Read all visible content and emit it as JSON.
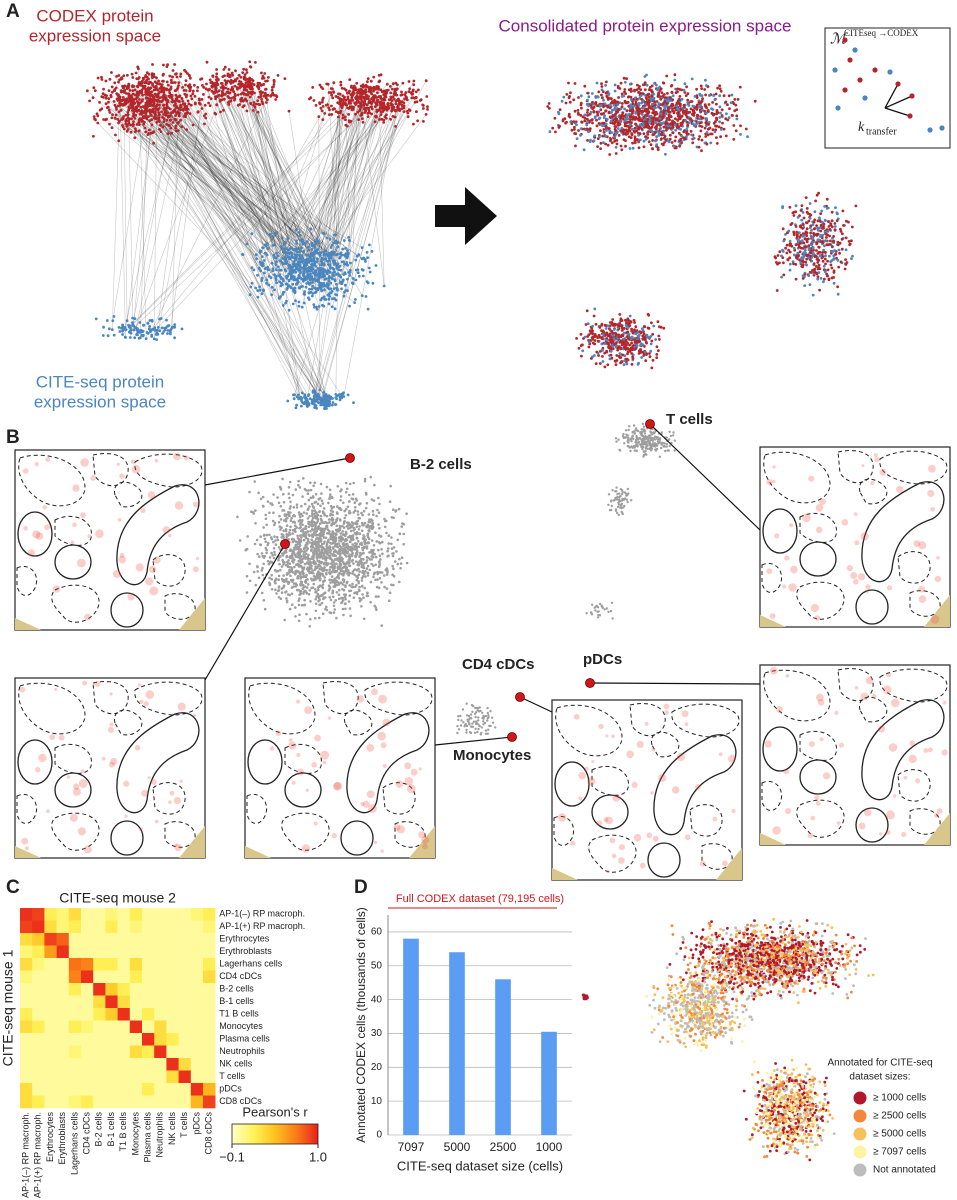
{
  "panels": {
    "A": {
      "label": "A",
      "codex_label": [
        "CODEX protein",
        "expression space"
      ],
      "cite_label": [
        "CITE-seq protein",
        "expression space"
      ],
      "consolidated_label": "Consolidated protein expression space",
      "mapping_symbol": "ℳ",
      "mapping_superscript": "CITEseq →CODEX",
      "k_symbol": "k",
      "k_subscript": "transfer"
    },
    "B": {
      "label": "B",
      "clusters": [
        "B-2 cells",
        "T cells",
        "CD4 cDCs",
        "pDCs",
        "Monocytes"
      ]
    },
    "C": {
      "label": "C"
    },
    "D": {
      "label": "D",
      "legend_title": [
        "Annotated for CITE-seq",
        "dataset sizes:"
      ],
      "legend": [
        {
          "label": "≥ 1000 cells",
          "color": "#b2182b"
        },
        {
          "label": "≥ 2500 cells",
          "color": "#f4873a"
        },
        {
          "label": "≥ 5000 cells",
          "color": "#f7c05b"
        },
        {
          "label": "≥ 7097 cells",
          "color": "#fdf3a0"
        },
        {
          "label": "Not annotated",
          "color": "#bdbdbd"
        }
      ]
    }
  },
  "chart_data": [
    {
      "type": "heatmap",
      "title": "CITE-seq mouse 2",
      "ylabel": "CITE-seq mouse 1",
      "rows": [
        "AP-1(–) RP macroph.",
        "AP-1(+) RP macroph.",
        "Erythrocytes",
        "Erythroblasts",
        "Lagerhans cells",
        "CD4 cDCs",
        "B-2 cells",
        "B-1 cells",
        "T1 B cells",
        "Monocytes",
        "Plasma cells",
        "Neutrophils",
        "NK cells",
        "T cells",
        "pDCs",
        "CD8 cDCs"
      ],
      "columns": [
        "AP-1(–) RP macroph.",
        "AP-1(+) RP macroph.",
        "Erythrocytes",
        "Erythroblasts",
        "Lagerhans cells",
        "CD4 cDCs",
        "B-2 cells",
        "B-1 cells",
        "T1 B cells",
        "Monocytes",
        "Plasma cells",
        "Neutrophils",
        "NK cells",
        "T cells",
        "pDCs",
        "CD8 cDCs"
      ],
      "values": [
        [
          0.95,
          0.9,
          0.2,
          0.1,
          0.3,
          0,
          0,
          0.1,
          0,
          0.2,
          0,
          0,
          0,
          0,
          0.1,
          0.2
        ],
        [
          0.9,
          0.95,
          0.3,
          0.1,
          0.2,
          0,
          0,
          0.2,
          0,
          0.1,
          0,
          0,
          0,
          0,
          0,
          0.1
        ],
        [
          0.3,
          0.4,
          0.9,
          0.8,
          0,
          0,
          0,
          0,
          0,
          0,
          0,
          0,
          0,
          0,
          0,
          0
        ],
        [
          0.1,
          0.2,
          0.6,
          0.95,
          0,
          0,
          0,
          0,
          0,
          0,
          0,
          0,
          0,
          0,
          0,
          0
        ],
        [
          0.3,
          0.1,
          0,
          0,
          0.75,
          0.7,
          0.2,
          0.2,
          0,
          0.3,
          0,
          0,
          0,
          0,
          0,
          0.2
        ],
        [
          0.1,
          0,
          0,
          0,
          0.7,
          0.95,
          0,
          0,
          0,
          0.2,
          0,
          0,
          0,
          0,
          0,
          0.3
        ],
        [
          0,
          0,
          0,
          0,
          0.2,
          0,
          0.95,
          0.4,
          0.2,
          0,
          0,
          0,
          0,
          0,
          0,
          0
        ],
        [
          0,
          0,
          0,
          0,
          0,
          0,
          0.3,
          0.95,
          0.3,
          0,
          0,
          0,
          0,
          0,
          0,
          0
        ],
        [
          0.2,
          0,
          0,
          0,
          0,
          0,
          0.2,
          0.4,
          0.95,
          0,
          0.2,
          0,
          0,
          0,
          0,
          0
        ],
        [
          0.3,
          0.2,
          0,
          0,
          0.2,
          0.1,
          0,
          0,
          0,
          0.95,
          0,
          0.3,
          0,
          0,
          0,
          0
        ],
        [
          0,
          0,
          0,
          0,
          0,
          0,
          0,
          0,
          0,
          0,
          0.95,
          0.3,
          0.2,
          0,
          0,
          0
        ],
        [
          0,
          0,
          0,
          0,
          0.1,
          0,
          0,
          0,
          0,
          0.3,
          0.2,
          0.95,
          0,
          0,
          0,
          0
        ],
        [
          0,
          0,
          0,
          0,
          0,
          0,
          0,
          0,
          0,
          0,
          0,
          0,
          0.95,
          0.3,
          0,
          0
        ],
        [
          0,
          0,
          0,
          0,
          0,
          0,
          0,
          0,
          0,
          0,
          0,
          0,
          0.3,
          0.95,
          0,
          0
        ],
        [
          0.3,
          0,
          0,
          0,
          0,
          0,
          0,
          0,
          0,
          0,
          0.2,
          0,
          0,
          0,
          0.95,
          0.5
        ],
        [
          0.3,
          0.2,
          0,
          0,
          0.1,
          0.2,
          0,
          0,
          0,
          0,
          0,
          0,
          0,
          0,
          0.5,
          0.9
        ]
      ],
      "colorbar_label": "Pearson's r",
      "clim": [
        -0.1,
        1.0
      ],
      "cticks": [
        {
          "value": -0.1,
          "label": "−0.1"
        },
        {
          "value": 1.0,
          "label": "1.0"
        }
      ],
      "colors": [
        "#ffffc4",
        "#fff35a",
        "#ffc21f",
        "#fb7a18",
        "#e8201c"
      ]
    },
    {
      "type": "bar",
      "title": "Full CODEX dataset (79,195 cells)",
      "ylabel": "Annotated CODEX cells (thousands of cells)",
      "xlabel": "CITE-seq dataset size (cells)",
      "categories": [
        "7097",
        "5000",
        "2500",
        "1000"
      ],
      "values": [
        58,
        54,
        46,
        30.5
      ],
      "color": "#5b9cf5",
      "ylim": [
        0,
        65
      ],
      "yticks": [
        0,
        10,
        20,
        30,
        40,
        50,
        60
      ],
      "grid": true
    }
  ]
}
